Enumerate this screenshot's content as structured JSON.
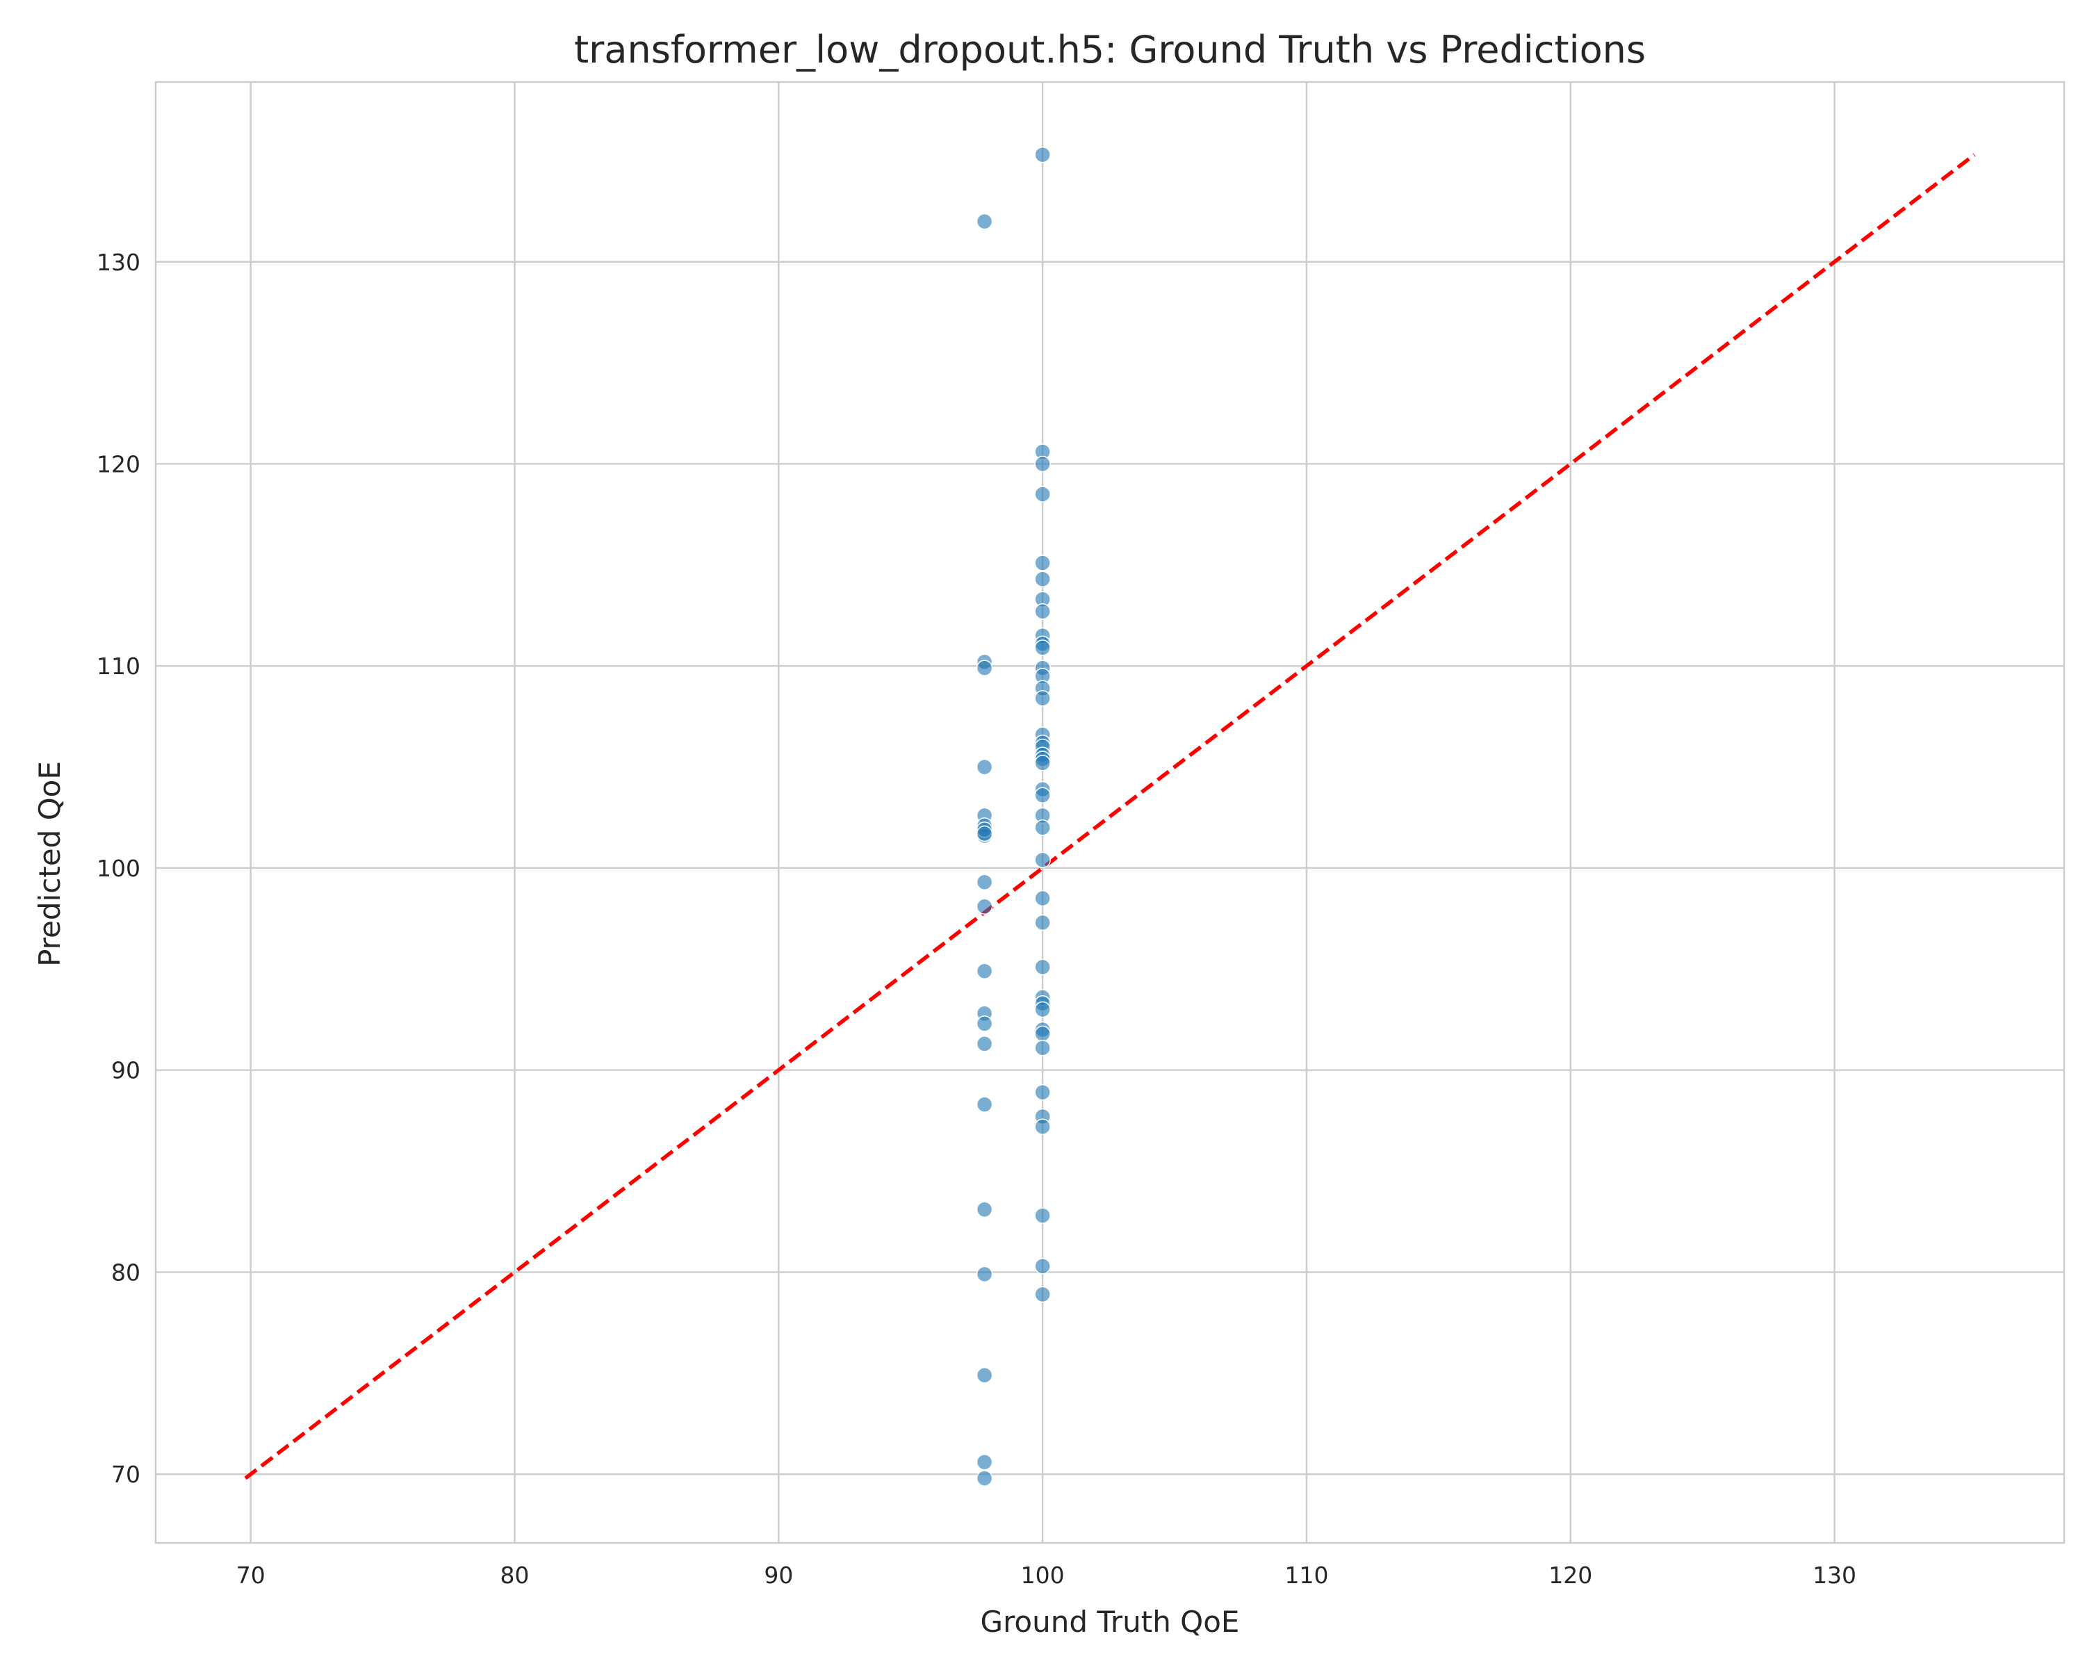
{
  "chart_data": {
    "type": "scatter",
    "title": "transformer_low_dropout.h5: Ground Truth vs Predictions",
    "xlabel": "Ground Truth QoE",
    "ylabel": "Predicted QoE",
    "xlim": [
      66.4,
      138.7
    ],
    "ylim": [
      66.6,
      138.9
    ],
    "xticks": [
      70,
      80,
      90,
      100,
      110,
      120,
      130
    ],
    "yticks": [
      70,
      80,
      90,
      100,
      110,
      120,
      130
    ],
    "grid": true,
    "colors": {
      "points": "#1f77b4",
      "reference_line": "#ff0000",
      "grid": "#cccccc"
    },
    "reference_line": {
      "style": "dashed",
      "from": [
        69.8,
        69.8
      ],
      "to": [
        135.3,
        135.3
      ]
    },
    "series": [
      {
        "x": [
          97.8,
          97.8,
          97.8,
          97.8,
          97.8,
          97.8,
          97.8,
          97.8,
          97.8,
          97.8,
          97.8,
          97.8,
          97.8,
          97.8,
          97.8,
          97.8,
          97.8,
          97.8,
          97.8,
          97.8,
          97.8,
          100,
          100,
          100,
          100,
          100,
          100,
          100,
          100,
          100,
          100,
          100,
          100,
          100,
          100,
          100,
          100,
          100,
          100,
          100,
          100,
          100,
          100,
          100,
          100,
          100,
          100,
          100,
          100,
          100,
          100,
          100,
          100,
          100,
          100,
          100,
          100,
          100,
          100,
          100,
          100,
          100
        ],
        "y": [
          132.0,
          110.2,
          109.9,
          105.0,
          102.6,
          102.1,
          101.6,
          99.3,
          98.1,
          94.9,
          92.8,
          92.3,
          91.3,
          88.3,
          83.1,
          79.9,
          74.9,
          70.6,
          69.8,
          101.9,
          101.7,
          135.3,
          120.6,
          120.0,
          118.5,
          115.1,
          114.3,
          113.3,
          112.7,
          111.5,
          111.1,
          110.9,
          109.9,
          109.5,
          108.9,
          108.4,
          106.6,
          106.2,
          106.0,
          105.6,
          105.4,
          105.2,
          103.9,
          103.6,
          102.6,
          102.0,
          100.4,
          98.5,
          97.3,
          95.1,
          93.6,
          93.3,
          93.0,
          92.0,
          91.8,
          91.1,
          88.9,
          87.7,
          87.2,
          82.8,
          80.3,
          78.9
        ]
      }
    ]
  }
}
